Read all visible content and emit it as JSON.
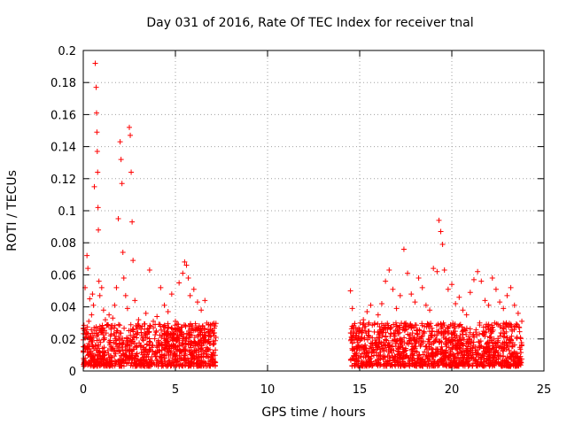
{
  "chart_data": {
    "type": "scatter",
    "title": "Day 031 of 2016, Rate Of TEC Index for receiver tnal",
    "xlabel": "GPS time / hours",
    "ylabel": "ROTI / TECUs",
    "xlim": [
      0,
      25
    ],
    "ylim": [
      0,
      0.2
    ],
    "xticks": [
      0,
      5,
      10,
      15,
      20,
      25
    ],
    "xtick_labels": [
      "0",
      "5",
      "10",
      "15",
      "20",
      "25"
    ],
    "yticks": [
      0,
      0.02,
      0.04,
      0.06,
      0.08,
      0.1,
      0.12,
      0.14,
      0.16,
      0.18,
      0.2
    ],
    "ytick_labels": [
      "0",
      "0.02",
      "0.04",
      "0.06",
      "0.08",
      "0.1",
      "0.12",
      "0.14",
      "0.16",
      "0.18",
      "0.2"
    ],
    "grid": true,
    "marker": "+",
    "series": [
      {
        "name": "ROTI",
        "color": "#ff0000",
        "x": [
          0.05,
          0.1,
          0.2,
          0.25,
          0.3,
          0.35,
          0.4,
          0.45,
          0.5,
          0.55,
          0.6,
          0.65,
          0.7,
          0.72,
          0.74,
          0.76,
          0.78,
          0.8,
          0.82,
          0.85,
          0.9,
          1.0,
          1.1,
          1.2,
          1.3,
          1.4,
          1.5,
          1.6,
          1.7,
          1.8,
          1.9,
          2.0,
          2.05,
          2.1,
          2.15,
          2.2,
          2.3,
          2.4,
          2.5,
          2.55,
          2.6,
          2.65,
          2.7,
          2.8,
          3.0,
          3.2,
          3.4,
          3.6,
          3.8,
          3.9,
          4.0,
          4.2,
          4.4,
          4.6,
          4.8,
          5.0,
          5.2,
          5.4,
          5.5,
          5.6,
          5.7,
          5.8,
          6.0,
          6.2,
          6.4,
          6.6,
          6.8,
          7.0,
          7.2,
          14.5,
          14.6,
          14.8,
          15.0,
          15.2,
          15.4,
          15.6,
          15.8,
          16.0,
          16.2,
          16.4,
          16.6,
          16.8,
          17.0,
          17.2,
          17.4,
          17.6,
          17.8,
          18.0,
          18.2,
          18.4,
          18.6,
          18.8,
          19.0,
          19.2,
          19.3,
          19.4,
          19.5,
          19.6,
          19.8,
          20.0,
          20.2,
          20.4,
          20.6,
          20.8,
          21.0,
          21.2,
          21.4,
          21.6,
          21.8,
          22.0,
          22.2,
          22.4,
          22.6,
          22.8,
          23.0,
          23.2,
          23.4,
          23.6,
          23.8
        ],
        "y": [
          0.015,
          0.052,
          0.072,
          0.064,
          0.031,
          0.045,
          0.022,
          0.035,
          0.048,
          0.041,
          0.115,
          0.192,
          0.177,
          0.161,
          0.149,
          0.137,
          0.124,
          0.102,
          0.088,
          0.056,
          0.047,
          0.052,
          0.038,
          0.032,
          0.029,
          0.035,
          0.027,
          0.033,
          0.041,
          0.052,
          0.095,
          0.143,
          0.132,
          0.117,
          0.074,
          0.058,
          0.047,
          0.039,
          0.152,
          0.147,
          0.124,
          0.093,
          0.069,
          0.044,
          0.032,
          0.028,
          0.036,
          0.063,
          0.031,
          0.029,
          0.034,
          0.052,
          0.041,
          0.037,
          0.048,
          0.031,
          0.055,
          0.061,
          0.068,
          0.066,
          0.058,
          0.047,
          0.051,
          0.043,
          0.038,
          0.044,
          0.029,
          0.025,
          0.021,
          0.05,
          0.039,
          0.021,
          0.025,
          0.032,
          0.037,
          0.041,
          0.029,
          0.035,
          0.042,
          0.056,
          0.063,
          0.051,
          0.039,
          0.047,
          0.076,
          0.061,
          0.048,
          0.043,
          0.058,
          0.052,
          0.041,
          0.038,
          0.064,
          0.062,
          0.094,
          0.087,
          0.079,
          0.063,
          0.051,
          0.054,
          0.042,
          0.046,
          0.038,
          0.035,
          0.049,
          0.057,
          0.062,
          0.056,
          0.044,
          0.041,
          0.058,
          0.051,
          0.043,
          0.039,
          0.047,
          0.052,
          0.041,
          0.036,
          0.031
        ],
        "baseline_band": [
          {
            "x_start": 0.0,
            "x_end": 7.2,
            "y_low": 0.003,
            "y_high": 0.03
          },
          {
            "x_start": 14.5,
            "x_end": 23.8,
            "y_low": 0.003,
            "y_high": 0.03
          }
        ]
      }
    ]
  }
}
